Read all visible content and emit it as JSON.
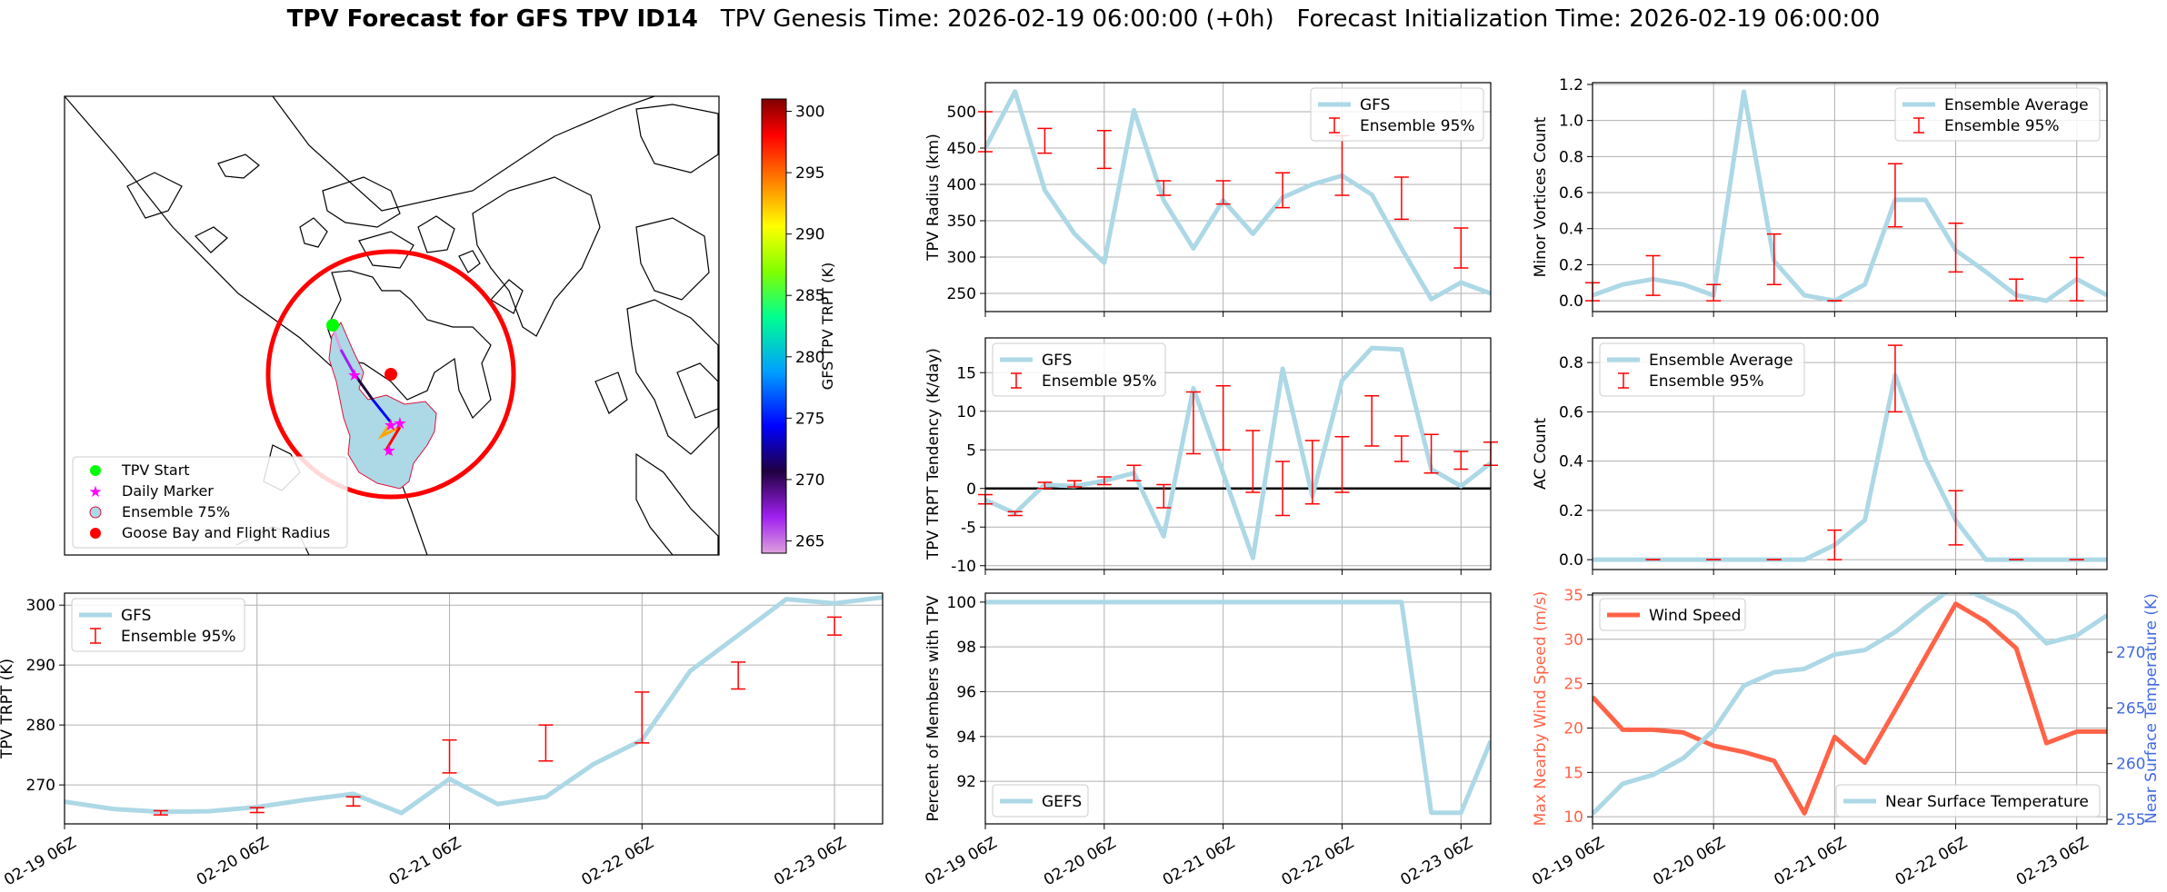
{
  "title": {
    "bold": "TPV Forecast for GFS TPV ID14",
    "genesis": "TPV Genesis Time: 2026-02-19 06:00:00 (+0h)",
    "init": "Forecast Initialization Time: 2026-02-19 06:00:00"
  },
  "colors": {
    "line": "#add8e6",
    "errbar": "#ff0000",
    "wind": "#ff6347",
    "temp_axis": "#4169e1",
    "grid": "#b0b0b0"
  },
  "x_tick_labels": [
    "02-19 06Z",
    "02-20 06Z",
    "02-21 06Z",
    "02-22 06Z",
    "02-23 06Z"
  ],
  "map": {
    "legend": [
      "TPV Start",
      "Daily Marker",
      "Ensemble 75%",
      "Goose Bay and Flight Radius"
    ],
    "colorbar": {
      "label": "GFS TPV TRPT (K)",
      "ticks": [
        265,
        270,
        275,
        280,
        285,
        290,
        295,
        300
      ],
      "range": [
        264,
        301
      ]
    }
  },
  "chart_data": [
    {
      "id": "radius",
      "type": "line",
      "ylabel": "TPV Radius (km)",
      "x": [
        0,
        0.25,
        0.5,
        0.75,
        1,
        1.25,
        1.5,
        1.75,
        2,
        2.25,
        2.5,
        2.75,
        3,
        3.25,
        3.5,
        3.75,
        4,
        4.25
      ],
      "ylim": [
        225,
        540
      ],
      "yticks": [
        250,
        300,
        350,
        400,
        450,
        500
      ],
      "legend": [
        "GFS",
        "Ensemble 95%"
      ],
      "legend_pos": "top-right",
      "series": [
        {
          "name": "GFS",
          "values": [
            450,
            528,
            392,
            332,
            292,
            502,
            378,
            312,
            378,
            332,
            382,
            400,
            412,
            386,
            312,
            242,
            265,
            250
          ]
        }
      ],
      "errbars": [
        {
          "x": 0,
          "lo": 445,
          "hi": 500
        },
        {
          "x": 0.5,
          "lo": 443,
          "hi": 477
        },
        {
          "x": 1,
          "lo": 422,
          "hi": 474
        },
        {
          "x": 1.5,
          "lo": 385,
          "hi": 405
        },
        {
          "x": 2,
          "lo": 373,
          "hi": 405
        },
        {
          "x": 2.5,
          "lo": 368,
          "hi": 416
        },
        {
          "x": 3,
          "lo": 385,
          "hi": 467
        },
        {
          "x": 3.5,
          "lo": 352,
          "hi": 410
        },
        {
          "x": 4,
          "lo": 285,
          "hi": 340
        }
      ]
    },
    {
      "id": "minor",
      "type": "line",
      "ylabel": "Minor Vortices Count",
      "x": [
        0,
        0.25,
        0.5,
        0.75,
        1,
        1.25,
        1.5,
        1.75,
        2,
        2.25,
        2.5,
        2.75,
        3,
        3.25,
        3.5,
        3.75,
        4,
        4.25
      ],
      "ylim": [
        -0.06,
        1.21
      ],
      "yticks": [
        0.0,
        0.2,
        0.4,
        0.6,
        0.8,
        1.0,
        1.2
      ],
      "yfmt": 1,
      "legend": [
        "Ensemble Average",
        "Ensemble 95%"
      ],
      "legend_pos": "top-right",
      "series": [
        {
          "name": "Ensemble Average",
          "values": [
            0.03,
            0.09,
            0.12,
            0.09,
            0.03,
            1.16,
            0.22,
            0.03,
            0.0,
            0.09,
            0.56,
            0.56,
            0.28,
            0.16,
            0.03,
            0.0,
            0.12,
            0.03
          ]
        }
      ],
      "errbars": [
        {
          "x": 0,
          "lo": 0.0,
          "hi": 0.1
        },
        {
          "x": 0.5,
          "lo": 0.03,
          "hi": 0.25
        },
        {
          "x": 1,
          "lo": 0.0,
          "hi": 0.09
        },
        {
          "x": 1.5,
          "lo": 0.09,
          "hi": 0.37
        },
        {
          "x": 2,
          "lo": 0.0,
          "hi": 0.0
        },
        {
          "x": 2.5,
          "lo": 0.41,
          "hi": 0.76
        },
        {
          "x": 3,
          "lo": 0.16,
          "hi": 0.43
        },
        {
          "x": 3.5,
          "lo": 0.0,
          "hi": 0.12
        },
        {
          "x": 4,
          "lo": 0.0,
          "hi": 0.24
        }
      ]
    },
    {
      "id": "tendency",
      "type": "line",
      "ylabel": "TPV TRPT Tendency (K/day)",
      "x": [
        0,
        0.25,
        0.5,
        0.75,
        1,
        1.25,
        1.5,
        1.75,
        2,
        2.25,
        2.5,
        2.75,
        3,
        3.25,
        3.5,
        3.75,
        4,
        4.25
      ],
      "ylim": [
        -10.5,
        19.5
      ],
      "yticks": [
        -10,
        -5,
        0,
        5,
        10,
        15
      ],
      "zero_line": true,
      "legend": [
        "GFS",
        "Ensemble 95%"
      ],
      "legend_pos": "top-left",
      "series": [
        {
          "name": "GFS",
          "values": [
            -1.5,
            -3.2,
            0.5,
            0.3,
            1.0,
            2.0,
            -6.2,
            13.0,
            2.0,
            -9.0,
            15.5,
            -1.0,
            14.0,
            18.2,
            18.0,
            2.5,
            0.3,
            3.3
          ]
        }
      ],
      "errbars": [
        {
          "x": 0,
          "lo": -2.0,
          "hi": -0.8
        },
        {
          "x": 0.25,
          "lo": -3.5,
          "hi": -3.0
        },
        {
          "x": 0.5,
          "lo": 0.0,
          "hi": 0.8
        },
        {
          "x": 0.75,
          "lo": 0.2,
          "hi": 1.0
        },
        {
          "x": 1,
          "lo": 0.5,
          "hi": 1.5
        },
        {
          "x": 1.25,
          "lo": 1.0,
          "hi": 3.0
        },
        {
          "x": 1.5,
          "lo": -2.5,
          "hi": 0.5
        },
        {
          "x": 1.75,
          "lo": 4.5,
          "hi": 12.5
        },
        {
          "x": 2,
          "lo": 5.0,
          "hi": 13.3
        },
        {
          "x": 2.25,
          "lo": -0.5,
          "hi": 7.5
        },
        {
          "x": 2.5,
          "lo": -3.5,
          "hi": 3.5
        },
        {
          "x": 2.75,
          "lo": -2.0,
          "hi": 6.2
        },
        {
          "x": 3,
          "lo": -0.5,
          "hi": 6.7
        },
        {
          "x": 3.25,
          "lo": 5.5,
          "hi": 12.0
        },
        {
          "x": 3.5,
          "lo": 3.5,
          "hi": 6.8
        },
        {
          "x": 3.75,
          "lo": 2.0,
          "hi": 7.0
        },
        {
          "x": 4,
          "lo": 2.5,
          "hi": 4.8
        },
        {
          "x": 4.25,
          "lo": 3.0,
          "hi": 6.0
        }
      ]
    },
    {
      "id": "ac",
      "type": "line",
      "ylabel": "AC Count",
      "x": [
        0,
        0.25,
        0.5,
        0.75,
        1,
        1.25,
        1.5,
        1.75,
        2,
        2.25,
        2.5,
        2.75,
        3,
        3.25,
        3.5,
        3.75,
        4,
        4.25
      ],
      "ylim": [
        -0.04,
        0.9
      ],
      "yticks": [
        0.0,
        0.2,
        0.4,
        0.6,
        0.8
      ],
      "yfmt": 1,
      "legend": [
        "Ensemble Average",
        "Ensemble 95%"
      ],
      "legend_pos": "top-left",
      "series": [
        {
          "name": "Ensemble Average",
          "values": [
            0,
            0,
            0,
            0,
            0,
            0,
            0,
            0,
            0.06,
            0.16,
            0.75,
            0.41,
            0.16,
            0,
            0,
            0,
            0,
            0
          ]
        }
      ],
      "errbars": [
        {
          "x": 0.5,
          "lo": 0,
          "hi": 0
        },
        {
          "x": 1,
          "lo": 0,
          "hi": 0
        },
        {
          "x": 1.5,
          "lo": 0,
          "hi": 0
        },
        {
          "x": 2,
          "lo": 0,
          "hi": 0.12
        },
        {
          "x": 2.5,
          "lo": 0.6,
          "hi": 0.87
        },
        {
          "x": 3,
          "lo": 0.06,
          "hi": 0.28
        },
        {
          "x": 3.5,
          "lo": 0,
          "hi": 0
        },
        {
          "x": 4,
          "lo": 0,
          "hi": 0
        }
      ]
    },
    {
      "id": "trpt",
      "type": "line",
      "ylabel": "TPV TRPT (K)",
      "x": [
        0,
        0.25,
        0.5,
        0.75,
        1,
        1.25,
        1.5,
        1.75,
        2,
        2.25,
        2.5,
        2.75,
        3,
        3.25,
        3.5,
        3.75,
        4,
        4.25
      ],
      "ylim": [
        263.5,
        302
      ],
      "yticks": [
        270,
        280,
        290,
        300
      ],
      "legend": [
        "GFS",
        "Ensemble 95%"
      ],
      "legend_pos": "top-left",
      "series": [
        {
          "name": "GFS",
          "values": [
            267.2,
            266.0,
            265.5,
            265.6,
            266.3,
            267.5,
            268.5,
            265.3,
            271.0,
            266.8,
            268.0,
            273.5,
            277.5,
            289.0,
            295.0,
            301.0,
            300.3,
            301.3
          ]
        }
      ],
      "errbars": [
        {
          "x": 0.5,
          "lo": 265.0,
          "hi": 265.7
        },
        {
          "x": 1,
          "lo": 265.4,
          "hi": 266.2
        },
        {
          "x": 1.5,
          "lo": 266.5,
          "hi": 268.0
        },
        {
          "x": 2,
          "lo": 272.0,
          "hi": 277.5
        },
        {
          "x": 2.5,
          "lo": 274.0,
          "hi": 280.0
        },
        {
          "x": 3,
          "lo": 277.0,
          "hi": 285.5
        },
        {
          "x": 3.5,
          "lo": 286.0,
          "hi": 290.5
        },
        {
          "x": 4,
          "lo": 295.0,
          "hi": 298.0
        }
      ]
    },
    {
      "id": "percent",
      "type": "line",
      "ylabel": "Percent of Members with TPV",
      "x": [
        0,
        0.25,
        0.5,
        0.75,
        1,
        1.25,
        1.5,
        1.75,
        2,
        2.25,
        2.5,
        2.75,
        3,
        3.25,
        3.5,
        3.75,
        4,
        4.25
      ],
      "ylim": [
        90.1,
        100.4
      ],
      "yticks": [
        92,
        94,
        96,
        98,
        100
      ],
      "legend": [
        "GEFS"
      ],
      "legend_pos": "bottom-left",
      "series": [
        {
          "name": "GEFS",
          "values": [
            100,
            100,
            100,
            100,
            100,
            100,
            100,
            100,
            100,
            100,
            100,
            100,
            100,
            100,
            100,
            90.6,
            90.6,
            93.8
          ]
        }
      ],
      "errbars": []
    },
    {
      "id": "wind_temp",
      "type": "line",
      "ylabel": "Max Nearby Wind Speed (m/s)",
      "ylabel_right": "Near Surface Temperature (K)",
      "x": [
        0,
        0.25,
        0.5,
        0.75,
        1,
        1.25,
        1.5,
        1.75,
        2,
        2.25,
        2.5,
        2.75,
        3,
        3.25,
        3.5,
        3.75,
        4,
        4.25
      ],
      "ylim": [
        9.2,
        35.2
      ],
      "yticks": [
        10,
        15,
        20,
        25,
        30,
        35
      ],
      "ylim_right": [
        254.6,
        275.3
      ],
      "yticks_right": [
        255,
        260,
        265,
        270
      ],
      "legend": [
        "Wind Speed"
      ],
      "legend_pos": "top-left",
      "legend_right": [
        "Near Surface Temperature"
      ],
      "legend_right_pos": "bottom-right",
      "series": [
        {
          "name": "Wind Speed",
          "axis": "left",
          "values": [
            23.5,
            19.8,
            19.8,
            19.5,
            18.0,
            17.3,
            16.3,
            10.4,
            19.0,
            16.1,
            22.0,
            28.0,
            34.0,
            32.0,
            29.0,
            18.3,
            19.6,
            19.6
          ]
        },
        {
          "name": "Near Surface Temperature",
          "axis": "right",
          "values": [
            255.5,
            258.2,
            259.0,
            260.5,
            263.0,
            267.0,
            268.2,
            268.5,
            269.8,
            270.2,
            271.8,
            274.0,
            276.0,
            274.8,
            273.5,
            270.8,
            271.5,
            273.3
          ]
        }
      ]
    }
  ]
}
